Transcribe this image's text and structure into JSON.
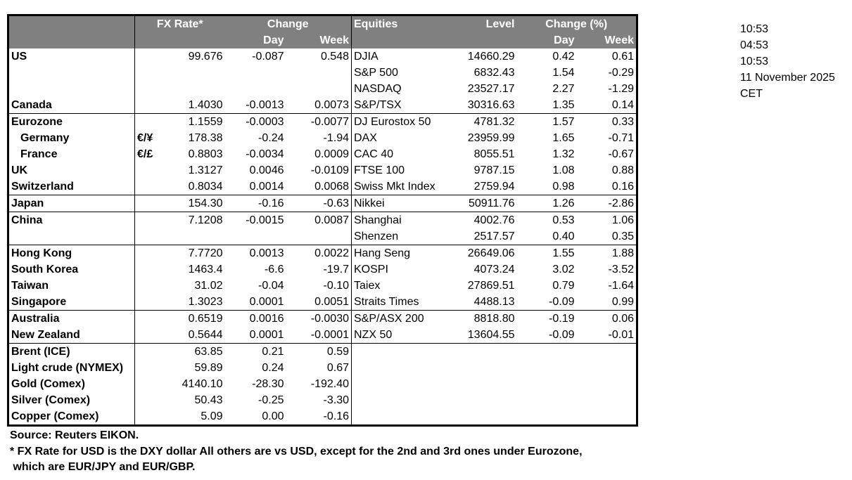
{
  "header": {
    "fx_rate": "FX Rate*",
    "change": "Change",
    "day": "Day",
    "week": "Week",
    "equities": "Equities",
    "level": "Level",
    "change_pct": "Change (%)"
  },
  "rows": [
    {
      "name": "US",
      "sym": "",
      "rate": "99.676",
      "day": "-0.087",
      "week": "0.548",
      "eq": "DJIA",
      "level": "14660.29",
      "eday": "0.42",
      "eweek": "0.61"
    },
    {
      "name": "",
      "sym": "",
      "rate": "",
      "day": "",
      "week": "",
      "eq": "S&P 500",
      "level": "6832.43",
      "eday": "1.54",
      "eweek": "-0.29"
    },
    {
      "name": "",
      "sym": "",
      "rate": "",
      "day": "",
      "week": "",
      "eq": "NASDAQ",
      "level": "23527.17",
      "eday": "2.27",
      "eweek": "-1.29"
    },
    {
      "name": "Canada",
      "sym": "",
      "rate": "1.4030",
      "day": "-0.0013",
      "week": "0.0073",
      "eq": "S&P/TSX",
      "level": "30316.63",
      "eday": "1.35",
      "eweek": "0.14",
      "sep": true
    },
    {
      "name": "Eurozone",
      "sym": "",
      "rate": "1.1559",
      "day": "-0.0003",
      "week": "-0.0077",
      "eq": "DJ Eurostox 50",
      "level": "4781.32",
      "eday": "1.57",
      "eweek": "0.33"
    },
    {
      "name": "Germany",
      "indent": true,
      "sym": "€/¥",
      "rate": "178.38",
      "day": "-0.24",
      "week": "-1.94",
      "eq": "DAX",
      "level": "23959.99",
      "eday": "1.65",
      "eweek": "-0.71"
    },
    {
      "name": "France",
      "indent": true,
      "sym": "€/£",
      "rate": "0.8803",
      "day": "-0.0034",
      "week": "0.0009",
      "eq": "CAC 40",
      "level": "8055.51",
      "eday": "1.32",
      "eweek": "-0.67"
    },
    {
      "name": "UK",
      "sym": "",
      "rate": "1.3127",
      "day": "0.0046",
      "week": "-0.0109",
      "eq": "FTSE 100",
      "level": "9787.15",
      "eday": "1.08",
      "eweek": "0.88"
    },
    {
      "name": "Switzerland",
      "sym": "",
      "rate": "0.8034",
      "day": "0.0014",
      "week": "0.0068",
      "eq": "Swiss Mkt Index",
      "level": "2759.94",
      "eday": "0.98",
      "eweek": "0.16",
      "sep": true
    },
    {
      "name": "Japan",
      "sym": "",
      "rate": "154.30",
      "day": "-0.16",
      "week": "-0.63",
      "eq": "Nikkei",
      "level": "50911.76",
      "eday": "1.26",
      "eweek": "-2.86",
      "sep": true
    },
    {
      "name": "China",
      "sym": "",
      "rate": "7.1208",
      "day": "-0.0015",
      "week": "0.0087",
      "eq": "Shanghai",
      "level": "4002.76",
      "eday": "0.53",
      "eweek": "1.06"
    },
    {
      "name": "",
      "sym": "",
      "rate": "",
      "day": "",
      "week": "",
      "eq": "Shenzen",
      "level": "2517.57",
      "eday": "0.40",
      "eweek": "0.35",
      "sep": true
    },
    {
      "name": "Hong Kong",
      "sym": "",
      "rate": "7.7720",
      "day": "0.0013",
      "week": "0.0022",
      "eq": "Hang Seng",
      "level": "26649.06",
      "eday": "1.55",
      "eweek": "1.88"
    },
    {
      "name": "South Korea",
      "sym": "",
      "rate": "1463.4",
      "day": "-6.6",
      "week": "-19.7",
      "eq": "KOSPI",
      "level": "4073.24",
      "eday": "3.02",
      "eweek": "-3.52"
    },
    {
      "name": "Taiwan",
      "sym": "",
      "rate": "31.02",
      "day": "-0.04",
      "week": "-0.10",
      "eq": "Taiex",
      "level": "27869.51",
      "eday": "0.79",
      "eweek": "-1.64"
    },
    {
      "name": "Singapore",
      "sym": "",
      "rate": "1.3023",
      "day": "0.0001",
      "week": "0.0051",
      "eq": "Straits Times",
      "level": "4488.13",
      "eday": "-0.09",
      "eweek": "0.99",
      "sep": true
    },
    {
      "name": "Australia",
      "sym": "",
      "rate": "0.6519",
      "day": "0.0016",
      "week": "-0.0030",
      "eq": "S&P/ASX  200",
      "level": "8818.80",
      "eday": "-0.19",
      "eweek": "0.06"
    },
    {
      "name": "New Zealand",
      "sym": "",
      "rate": "0.5644",
      "day": "0.0001",
      "week": "-0.0001",
      "eq": "NZX 50",
      "level": "13604.55",
      "eday": "-0.09",
      "eweek": "-0.01",
      "sep": true
    },
    {
      "name": "Brent (ICE)",
      "sym": "",
      "rate": "63.85",
      "day": "0.21",
      "week": "0.59",
      "eq": "",
      "level": "",
      "eday": "",
      "eweek": ""
    },
    {
      "name": "Light crude (NYMEX)",
      "sym": "",
      "rate": "59.89",
      "day": "0.24",
      "week": "0.67",
      "eq": "",
      "level": "",
      "eday": "",
      "eweek": ""
    },
    {
      "name": "Gold (Comex)",
      "sym": "",
      "rate": "4140.10",
      "day": "-28.30",
      "week": "-192.40",
      "eq": "",
      "level": "",
      "eday": "",
      "eweek": ""
    },
    {
      "name": "Silver (Comex)",
      "sym": "",
      "rate": "50.43",
      "day": "-0.25",
      "week": "-3.30",
      "eq": "",
      "level": "",
      "eday": "",
      "eweek": ""
    },
    {
      "name": "Copper (Comex)",
      "sym": "",
      "rate": "5.09",
      "day": "0.00",
      "week": "-0.16",
      "eq": "",
      "level": "",
      "eday": "",
      "eweek": ""
    }
  ],
  "side": [
    "10:53",
    "04:53",
    "10:53",
    "11 November 2025",
    "CET"
  ],
  "footer": {
    "source": "Source:  Reuters EIKON.",
    "note1": "* FX Rate for USD is the DXY dollar  All others are vs USD, except for the 2nd and 3rd ones under Eurozone,",
    "note2": " which are EUR/JPY and EUR/GBP."
  }
}
